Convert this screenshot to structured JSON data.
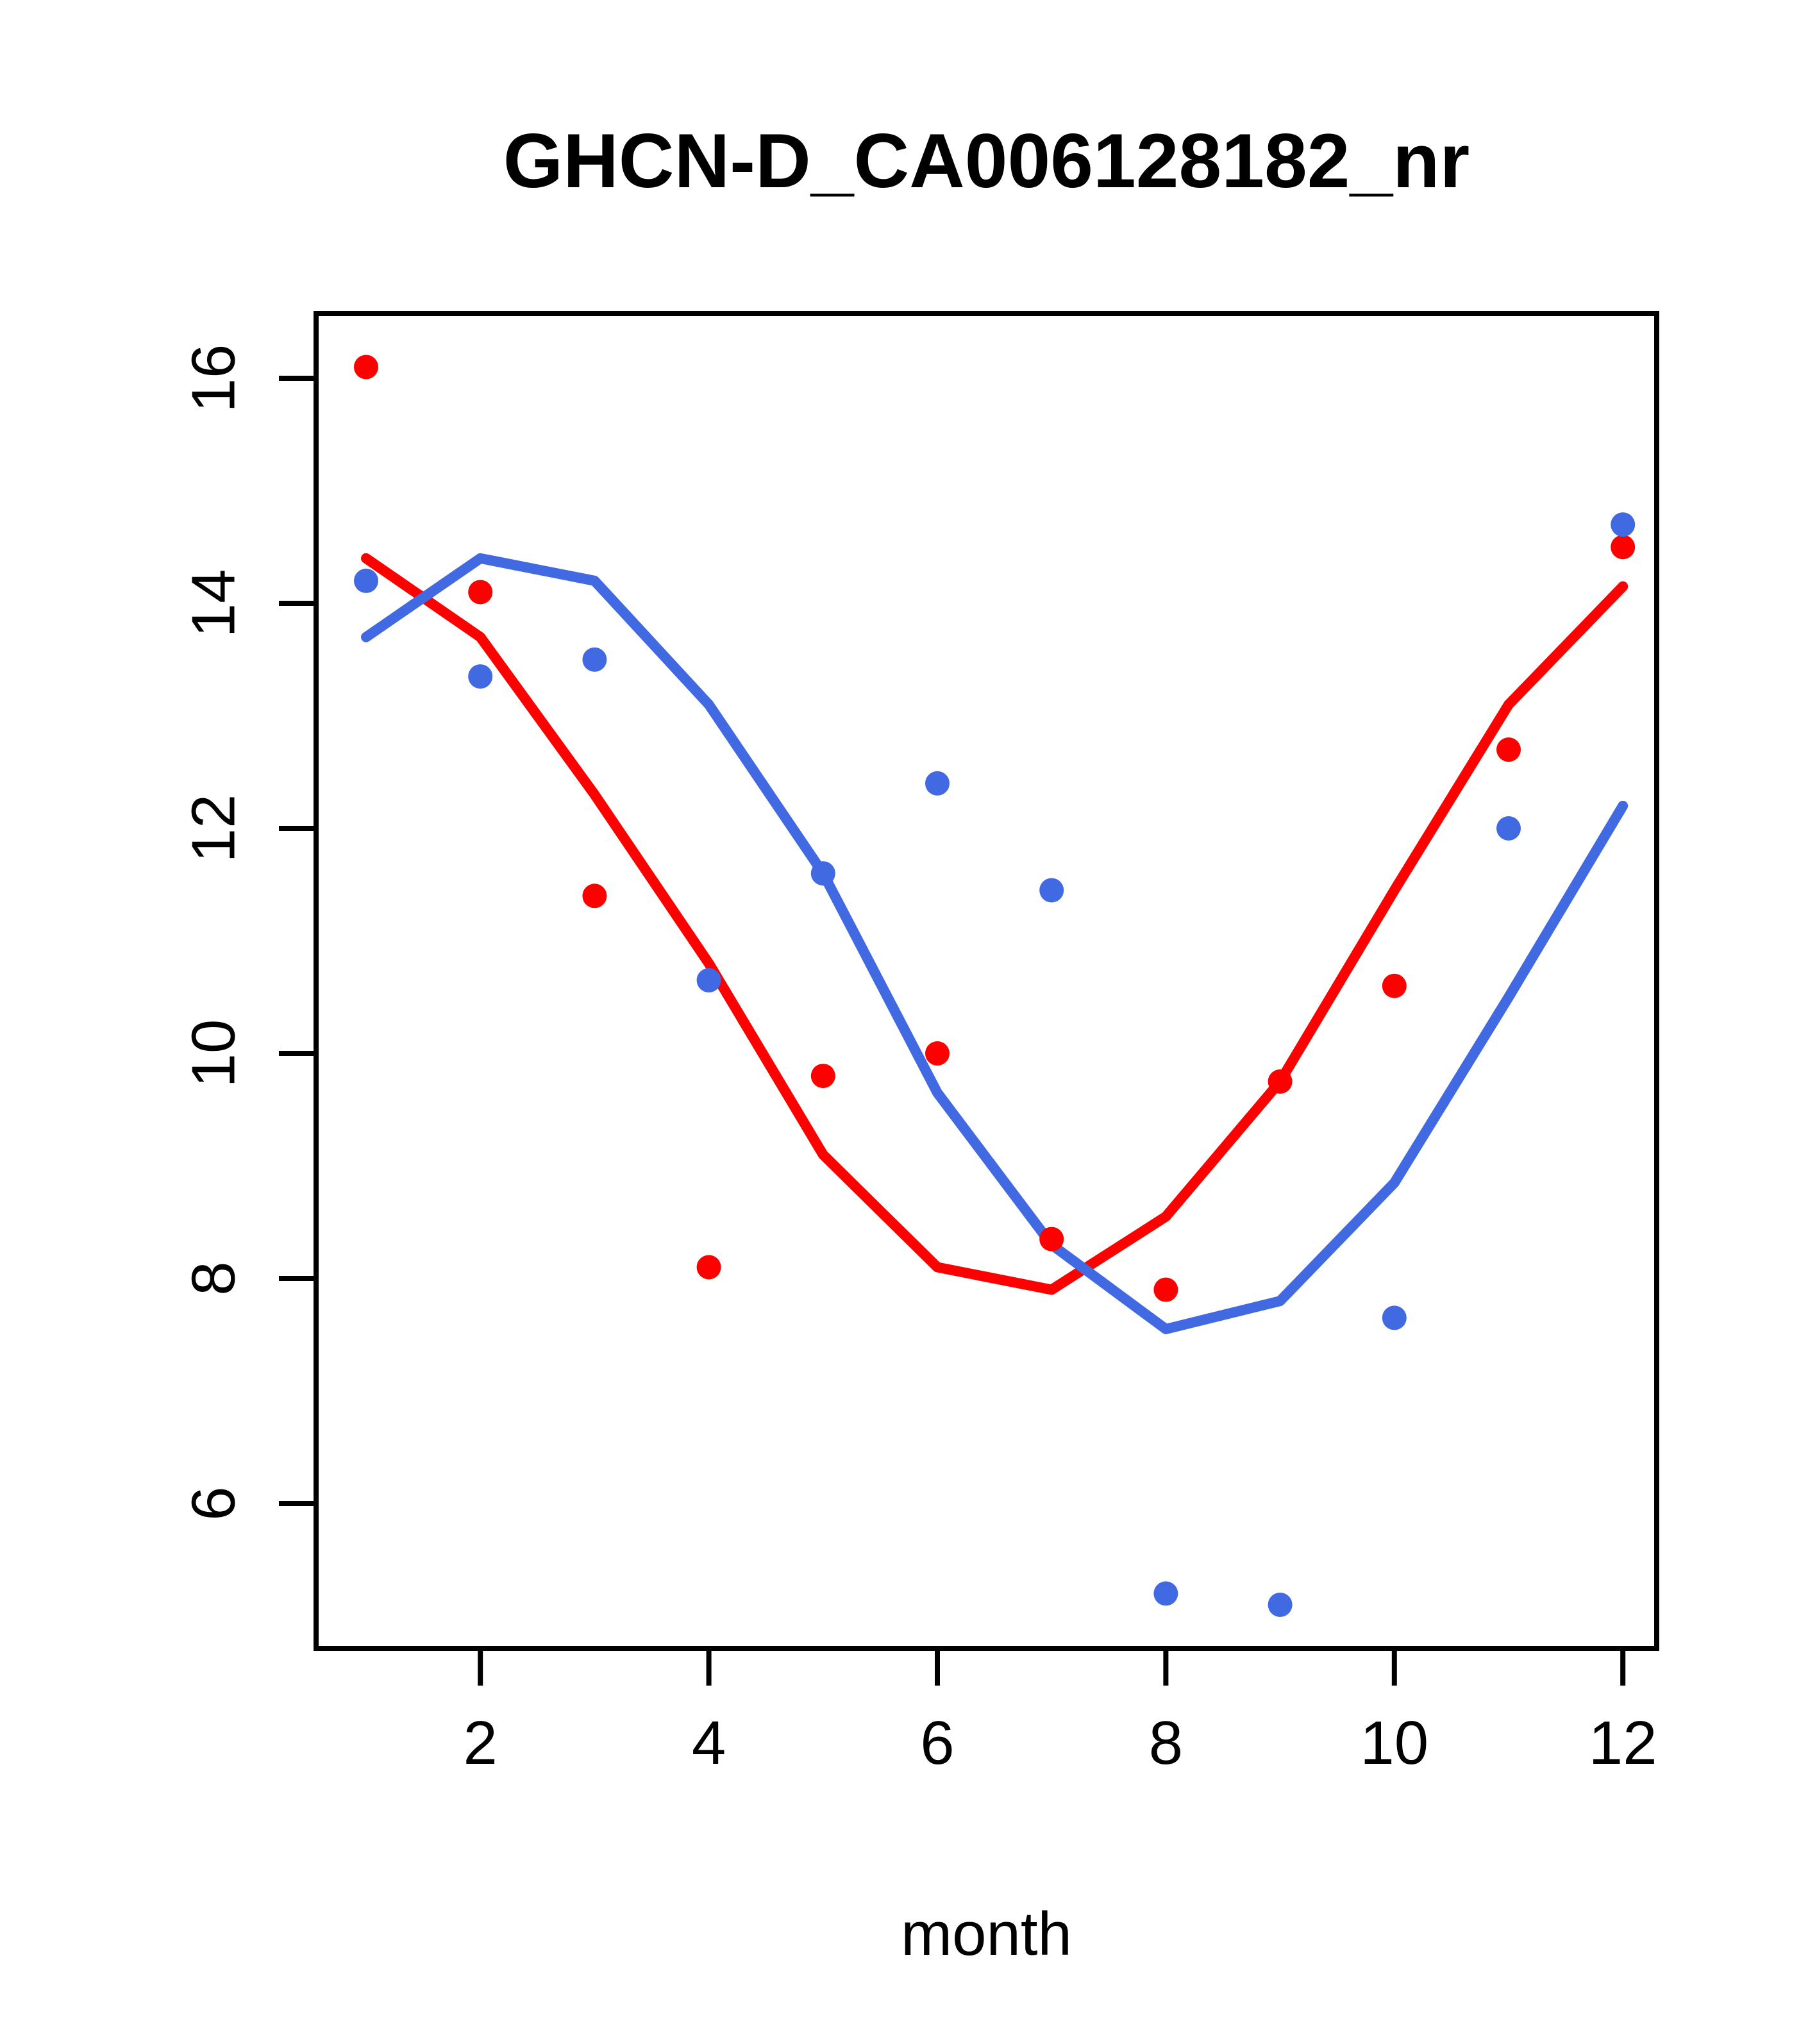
{
  "chart_data": {
    "type": "scatter",
    "title": "GHCN-D_CA006128182_nr",
    "xlabel": "month",
    "ylabel": "",
    "background": "#FFFFFF",
    "axis_color": "#000000",
    "grid": false,
    "legend": "none",
    "x": [
      1,
      2,
      3,
      4,
      5,
      6,
      7,
      8,
      9,
      10,
      11,
      12
    ],
    "x_ticks": [
      2,
      4,
      6,
      8,
      10,
      12
    ],
    "y_ticks": [
      16,
      14,
      12,
      10,
      8,
      6
    ],
    "xlim": [
      0.56,
      12.3
    ],
    "ylim": [
      4.7,
      16.6
    ],
    "series": [
      {
        "name": "red-points",
        "kind": "points",
        "color": "#FF0000",
        "values": [
          16.1,
          14.1,
          11.4,
          8.1,
          9.8,
          10.0,
          8.35,
          7.9,
          9.75,
          10.6,
          12.7,
          14.5
        ]
      },
      {
        "name": "blue-points",
        "kind": "points",
        "color": "#4169E1",
        "values": [
          14.2,
          13.35,
          13.5,
          10.65,
          11.6,
          12.4,
          11.45,
          5.2,
          5.1,
          7.65,
          12.0,
          14.7
        ]
      },
      {
        "name": "red-trend-line",
        "kind": "line",
        "color": "#FF0000",
        "values": [
          14.4,
          13.7,
          12.3,
          10.8,
          9.1,
          8.1,
          7.9,
          8.55,
          9.75,
          11.45,
          13.1,
          14.15
        ]
      },
      {
        "name": "blue-trend-line",
        "kind": "line",
        "color": "#4169E1",
        "values": [
          13.7,
          14.4,
          14.2,
          13.1,
          11.6,
          9.65,
          8.3,
          7.55,
          7.8,
          8.85,
          10.5,
          12.2
        ]
      }
    ]
  }
}
